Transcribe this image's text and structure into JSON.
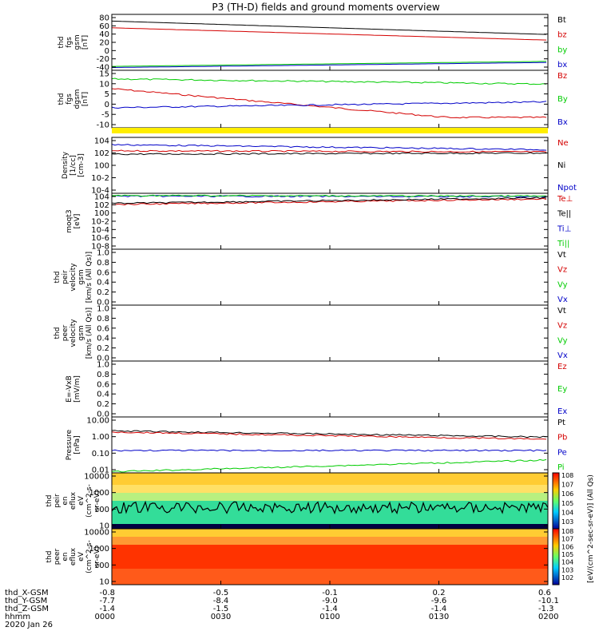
{
  "title": "P3 (TH-D) fields and ground moments overview",
  "date_label": "2020 Jan 26",
  "colors": {
    "black": "#000000",
    "red": "#d40000",
    "green": "#00cc00",
    "blue": "#0000c8",
    "yellow": "#ffee00"
  },
  "footer": {
    "row_labels": [
      "thd_X-GSM",
      "thd_Y-GSM",
      "thd_Z-GSM",
      "hhmm"
    ],
    "x_gsm": [
      "-0.8",
      "-0.5",
      "-0.1",
      "0.2",
      "0.6"
    ],
    "y_gsm": [
      "-7.7",
      "-8.4",
      "-9.0",
      "-9.6",
      "-10.1"
    ],
    "z_gsm": [
      "-1.4",
      "-1.5",
      "-1.4",
      "-1.4",
      "-1.3"
    ],
    "hhmm": [
      "0000",
      "0030",
      "0100",
      "0130",
      "0200"
    ]
  },
  "colorbar": {
    "label": "[eV/(cm^2-sec-sr-eV)] (All Qs)",
    "ticks_top": [
      "10^8",
      "10^7",
      "10^6",
      "10^5",
      "10^4",
      "10^3"
    ],
    "ticks_bottom": [
      "10^8",
      "10^7",
      "10^6",
      "10^5",
      "10^4",
      "10^3",
      "10^2"
    ]
  },
  "chart_data": [
    {
      "type": "line",
      "panel": "fgs_gsm",
      "ylabel": [
        "thd",
        "fgs",
        "gsm",
        "[nT]"
      ],
      "yticks": [
        "80",
        "60",
        "40",
        "20",
        "0",
        "-20",
        "-40"
      ],
      "ylim": [
        -40,
        80
      ],
      "x": [
        "0000",
        "0200"
      ],
      "series": [
        {
          "name": "Bt",
          "color": "#000000",
          "values": [
            70,
            40
          ]
        },
        {
          "name": "bz",
          "color": "#d40000",
          "values": [
            54,
            30
          ]
        },
        {
          "name": "by",
          "color": "#00cc00",
          "values": [
            -34,
            -22
          ]
        },
        {
          "name": "bx",
          "color": "#0000c8",
          "values": [
            -36,
            -24
          ]
        }
      ]
    },
    {
      "type": "line",
      "panel": "fgs_dgsm",
      "ylabel": [
        "thd",
        "fgs",
        "dgsm",
        "[nT]"
      ],
      "yticks": [
        "15",
        "10",
        "5",
        "0",
        "-5",
        "-10"
      ],
      "ylim": [
        -15,
        15
      ],
      "series": [
        {
          "name": "Bz",
          "color": "#d40000",
          "values": [
            6,
            3,
            1,
            -1,
            -2,
            -3,
            -4
          ]
        },
        {
          "name": "By",
          "color": "#00cc00",
          "values": [
            11,
            10.5,
            9.5,
            9,
            9.5,
            9,
            8
          ]
        },
        {
          "name": "Bx",
          "color": "#0000c8",
          "values": [
            -1,
            0,
            0.5,
            1,
            1.5,
            2,
            2
          ]
        }
      ]
    },
    {
      "type": "line",
      "panel": "density",
      "ylabel": [
        "Density",
        "[1/cc]",
        "[cm-3]"
      ],
      "yticks": [
        "10^4",
        "10^2",
        "10^0",
        "10^-2",
        "10^-4"
      ],
      "series": [
        {
          "name": "Ne",
          "color": "#d40000"
        },
        {
          "name": "Ni",
          "color": "#000000"
        },
        {
          "name": "Npot",
          "color": "#0000c8"
        }
      ]
    },
    {
      "type": "line",
      "panel": "temperature",
      "ylabel": [
        "moqt3",
        "[eV]"
      ],
      "yticks": [
        "10^4",
        "10^2",
        "10^0",
        "10^-2",
        "10^-4",
        "10^-6",
        "10^-8"
      ],
      "series": [
        {
          "name": "Te⊥",
          "color": "#d40000"
        },
        {
          "name": "Te||",
          "color": "#000000"
        },
        {
          "name": "Ti⊥",
          "color": "#0000c8"
        },
        {
          "name": "Ti||",
          "color": "#00cc00"
        }
      ]
    },
    {
      "type": "line",
      "panel": "peir_velocity",
      "ylabel": [
        "thd",
        "peir",
        "velocity",
        "gsm",
        "[km/s (All Qs)]"
      ],
      "yticks": [
        "1.0",
        "0.8",
        "0.6",
        "0.4",
        "0.2",
        "0.0"
      ],
      "series": [
        {
          "name": "Vt",
          "color": "#000000"
        },
        {
          "name": "Vz",
          "color": "#d40000"
        },
        {
          "name": "Vy",
          "color": "#00cc00"
        },
        {
          "name": "Vx",
          "color": "#0000c8"
        }
      ]
    },
    {
      "type": "line",
      "panel": "peer_velocity",
      "ylabel": [
        "thd",
        "peer",
        "velocity",
        "gsm",
        "[km/s (All Qs)]"
      ],
      "yticks": [
        "1.0",
        "0.8",
        "0.6",
        "0.4",
        "0.2",
        "0.0"
      ],
      "series": [
        {
          "name": "Vt",
          "color": "#000000"
        },
        {
          "name": "Vz",
          "color": "#d40000"
        },
        {
          "name": "Vy",
          "color": "#00cc00"
        },
        {
          "name": "Vx",
          "color": "#0000c8"
        }
      ]
    },
    {
      "type": "line",
      "panel": "efield",
      "ylabel": [
        "E=-VxB",
        "[mV/m]"
      ],
      "yticks": [
        "1.0",
        "0.8",
        "0.6",
        "0.4",
        "0.2",
        "0.0"
      ],
      "series": [
        {
          "name": "Ez",
          "color": "#d40000"
        },
        {
          "name": "Ey",
          "color": "#00cc00"
        },
        {
          "name": "Ex",
          "color": "#0000c8"
        }
      ]
    },
    {
      "type": "line",
      "panel": "pressure",
      "ylabel": [
        "Pressure",
        "[nPa]"
      ],
      "yticks": [
        "10.00",
        "1.00",
        "0.10",
        "0.01"
      ],
      "series": [
        {
          "name": "Pt",
          "color": "#000000",
          "values": [
            2.0,
            1.6,
            1.3,
            1.1,
            0.95,
            0.85,
            0.75
          ]
        },
        {
          "name": "Pb",
          "color": "#d40000",
          "values": [
            2.0,
            1.5,
            1.2,
            1.0,
            0.8,
            0.65,
            0.55
          ]
        },
        {
          "name": "Pe",
          "color": "#0000c8",
          "values": [
            0.2,
            0.2,
            0.2,
            0.19,
            0.2,
            0.19,
            0.2
          ]
        },
        {
          "name": "Pi",
          "color": "#00cc00",
          "values": [
            0.012,
            0.03,
            0.05,
            0.05,
            0.06,
            0.07,
            0.07
          ]
        }
      ]
    },
    {
      "type": "heatmap",
      "panel": "peir_eflux",
      "ylabel": [
        "thd",
        "peir",
        "en",
        "eflux",
        "eV",
        "(cm^2-s-",
        "sr-eV)"
      ],
      "yticks": [
        "10000",
        "1000",
        "100",
        "10"
      ]
    },
    {
      "type": "heatmap",
      "panel": "peer_eflux",
      "ylabel": [
        "thd",
        "peer",
        "en",
        "eflux",
        "eV",
        "(cm^2-s-",
        "sr-eV)"
      ],
      "yticks": [
        "10000",
        "1000",
        "100",
        "10"
      ]
    }
  ]
}
